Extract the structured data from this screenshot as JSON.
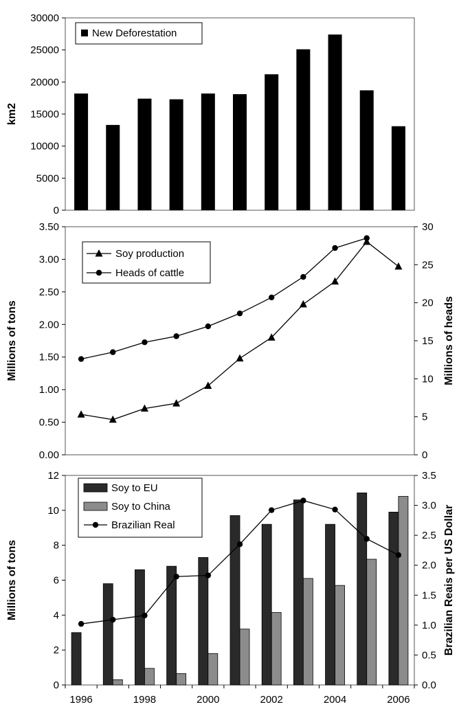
{
  "chart_data": [
    {
      "type": "bar",
      "legend": "New Deforestation",
      "legend_position": "top-left",
      "ylabel": "km2",
      "ylim": [
        0,
        30000
      ],
      "yticks": [
        "0",
        "5000",
        "10000",
        "15000",
        "20000",
        "25000",
        "30000"
      ],
      "x": [
        1996,
        1997,
        1998,
        1999,
        2000,
        2001,
        2002,
        2003,
        2004,
        2005,
        2006
      ],
      "values": [
        18200,
        13300,
        17400,
        17300,
        18200,
        18100,
        21200,
        25100,
        27400,
        18700,
        13100
      ],
      "colors": {
        "bar": "#000000"
      }
    },
    {
      "type": "line",
      "legend_position": "top-left",
      "ylabel_left": "Millions of tons",
      "ylabel_right": "Millions of heads",
      "ylim_left": [
        0,
        3.5
      ],
      "ylim_right": [
        0,
        30
      ],
      "yticks_left": [
        "0.00",
        "0.50",
        "1.00",
        "1.50",
        "2.00",
        "2.50",
        "3.00",
        "3.50"
      ],
      "yticks_right": [
        "0",
        "5",
        "10",
        "15",
        "20",
        "25",
        "30"
      ],
      "x": [
        1996,
        1997,
        1998,
        1999,
        2000,
        2001,
        2002,
        2003,
        2004,
        2005,
        2006
      ],
      "series": [
        {
          "name": "Soy production",
          "axis": "left",
          "marker": "triangle",
          "values": [
            0.62,
            0.54,
            0.71,
            0.79,
            1.06,
            1.48,
            1.8,
            2.31,
            2.66,
            3.27,
            2.89
          ]
        },
        {
          "name": "Heads of cattle",
          "axis": "right",
          "marker": "circle",
          "values": [
            12.6,
            13.5,
            14.8,
            15.6,
            16.9,
            18.6,
            20.7,
            23.4,
            27.2,
            28.5,
            null
          ]
        }
      ]
    },
    {
      "type": "bar",
      "legend_position": "top-left",
      "ylabel_left": "Millions of tons",
      "ylabel_right": "Brazilian Reais per US Dollar",
      "ylim_left": [
        0,
        12
      ],
      "ylim_right": [
        0,
        3.5
      ],
      "yticks_left": [
        "0",
        "2",
        "4",
        "6",
        "8",
        "10",
        "12"
      ],
      "yticks_right": [
        "0.0",
        "0.5",
        "1.0",
        "1.5",
        "2.0",
        "2.5",
        "3.0",
        "3.5"
      ],
      "x": [
        1996,
        1997,
        1998,
        1999,
        2000,
        2001,
        2002,
        2003,
        2004,
        2005,
        2006
      ],
      "xtick_labels": [
        "1996",
        "1998",
        "2000",
        "2002",
        "2004",
        "2006"
      ],
      "series": [
        {
          "name": "Soy to EU",
          "kind": "bar",
          "axis": "left",
          "color": "#2a2a2a",
          "values": [
            3.0,
            5.8,
            6.6,
            6.8,
            7.3,
            9.7,
            9.2,
            10.6,
            9.2,
            11.0,
            9.9
          ]
        },
        {
          "name": "Soy to China",
          "kind": "bar",
          "axis": "left",
          "color": "#8c8c8c",
          "values": [
            0.0,
            0.3,
            0.95,
            0.65,
            1.8,
            3.2,
            4.15,
            6.1,
            5.7,
            7.2,
            10.8
          ]
        },
        {
          "name": "Brazilian Real",
          "kind": "line",
          "axis": "right",
          "marker": "circle",
          "values": [
            1.02,
            1.09,
            1.16,
            1.81,
            1.83,
            2.35,
            2.92,
            3.08,
            2.93,
            2.44,
            2.17
          ]
        }
      ]
    }
  ]
}
